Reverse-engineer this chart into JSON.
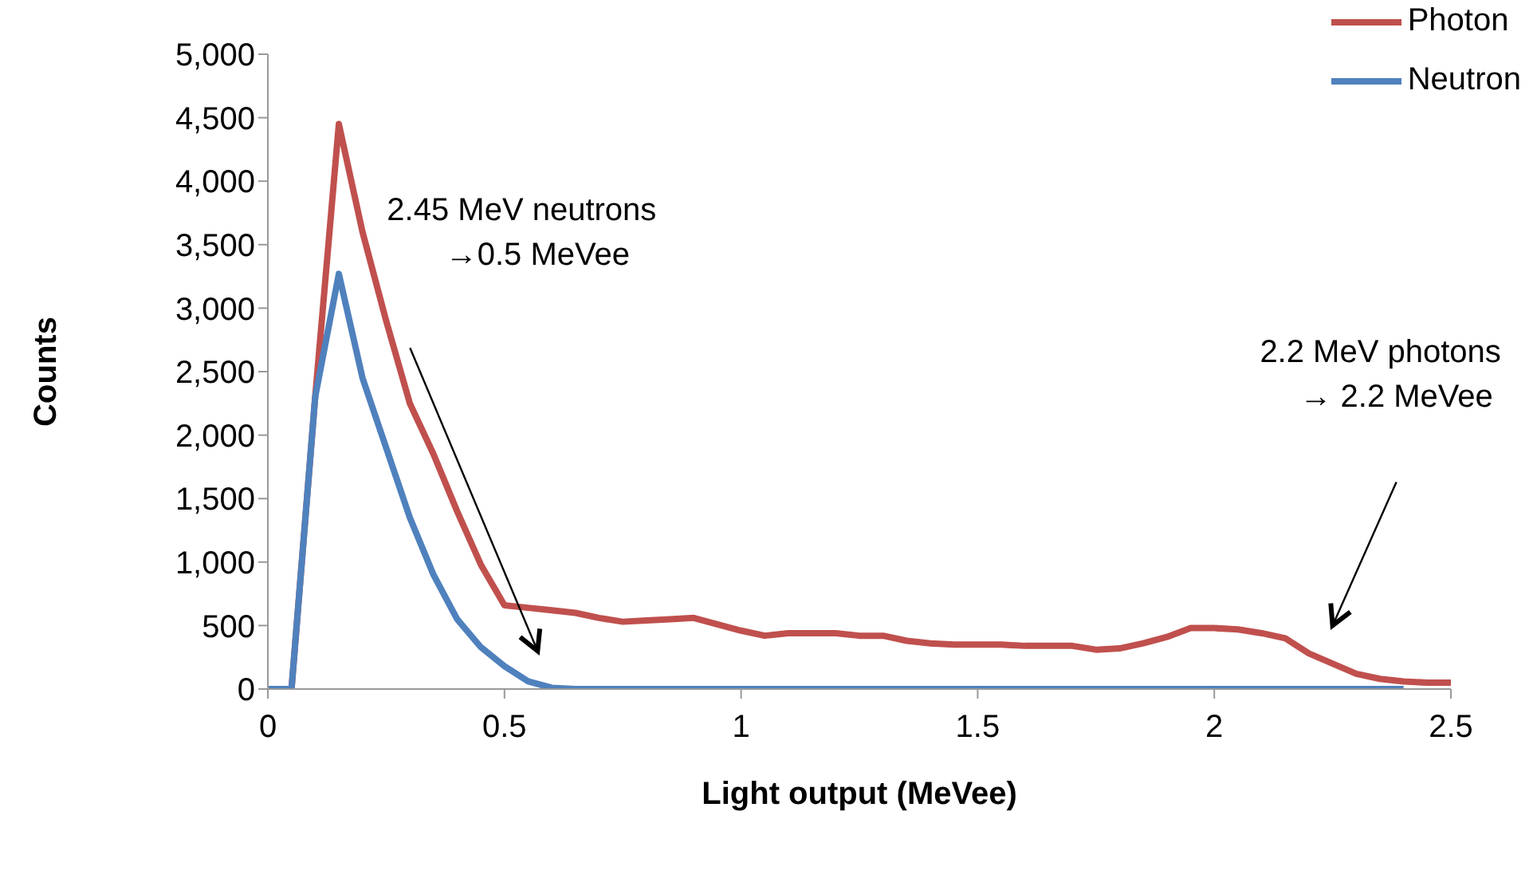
{
  "chart_data": {
    "type": "line",
    "xlabel": "Light output (MeVee)",
    "ylabel": "Counts",
    "x": [
      0,
      0.05,
      0.1,
      0.15,
      0.2,
      0.25,
      0.3,
      0.35,
      0.4,
      0.45,
      0.5,
      0.55,
      0.6,
      0.65,
      0.7,
      0.75,
      0.8,
      0.85,
      0.9,
      0.95,
      1.0,
      1.05,
      1.1,
      1.15,
      1.2,
      1.25,
      1.3,
      1.35,
      1.4,
      1.45,
      1.5,
      1.55,
      1.6,
      1.65,
      1.7,
      1.75,
      1.8,
      1.85,
      1.9,
      1.95,
      2.0,
      2.05,
      2.1,
      2.15,
      2.2,
      2.25,
      2.3,
      2.35,
      2.4,
      2.45,
      2.5
    ],
    "series": [
      {
        "name": "Photon",
        "color": "#c0504d",
        "values": [
          0,
          0,
          2300,
          4450,
          3600,
          2900,
          2250,
          1850,
          1400,
          980,
          660,
          640,
          620,
          600,
          560,
          530,
          540,
          550,
          560,
          510,
          460,
          420,
          440,
          440,
          440,
          420,
          420,
          380,
          360,
          350,
          350,
          350,
          340,
          340,
          340,
          310,
          320,
          360,
          410,
          480,
          480,
          470,
          440,
          400,
          280,
          200,
          120,
          80,
          60,
          50,
          50
        ]
      },
      {
        "name": "Neutron",
        "color": "#4f81bd",
        "values": [
          0,
          0,
          2300,
          3270,
          2450,
          1900,
          1350,
          900,
          550,
          330,
          180,
          60,
          10,
          0,
          0,
          0,
          0,
          0,
          0,
          0,
          0,
          0,
          0,
          0,
          0,
          0,
          0,
          0,
          0,
          0,
          0,
          0,
          0,
          0,
          0,
          0,
          0,
          0,
          0,
          0,
          0,
          0,
          0,
          0,
          0,
          0,
          0,
          0,
          0,
          null,
          null
        ]
      }
    ],
    "xlim": [
      0,
      2.5
    ],
    "xticks": [
      0,
      0.5,
      1,
      1.5,
      2,
      2.5
    ],
    "ylim": [
      0,
      5000
    ],
    "yticks": [
      0,
      {
        "value": 500,
        "label": "500"
      },
      {
        "value": 1000,
        "label": "1,000"
      },
      {
        "value": 1500,
        "label": "1,500"
      },
      {
        "value": 2000,
        "label": "2,000"
      },
      {
        "value": 2500,
        "label": "2,500"
      },
      {
        "value": 3000,
        "label": "3,000"
      },
      {
        "value": 3500,
        "label": "3,500"
      },
      {
        "value": 4000,
        "label": "4,000"
      },
      {
        "value": 4500,
        "label": "4,500"
      },
      {
        "value": 5000,
        "label": "5,000"
      }
    ],
    "annotations": [
      "2.45 MeV neutrons\n→0.5 MeVee",
      "2.2 MeV photons\n→ 2.2  MeVee"
    ],
    "legend": "top right",
    "grid": false,
    "marker": "none",
    "line_style": "solid"
  }
}
